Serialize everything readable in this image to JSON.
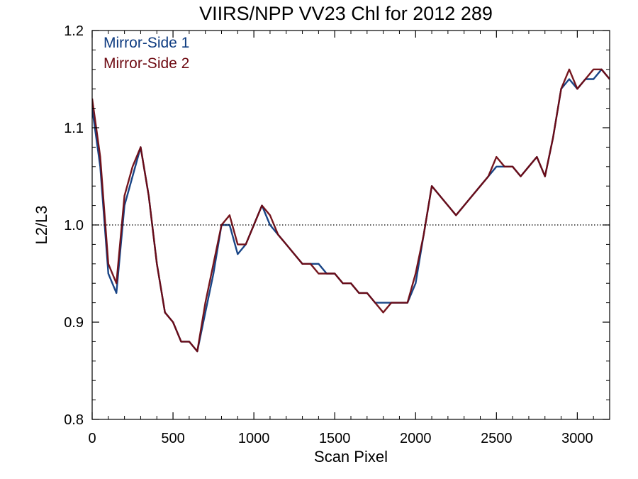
{
  "chart_data": {
    "type": "line",
    "title": "VIIRS/NPP VV23 Chl for 2012 289",
    "xlabel": "Scan Pixel",
    "ylabel": "L2/L3",
    "xlim": [
      0,
      3200
    ],
    "ylim": [
      0.8,
      1.2
    ],
    "x_ticks": [
      0,
      500,
      1000,
      1500,
      2000,
      2500,
      3000
    ],
    "x_tick_labels": [
      "0",
      "500",
      "1000",
      "1500",
      "2000",
      "2500",
      "3000"
    ],
    "y_ticks": [
      0.8,
      0.9,
      1.0,
      1.1,
      1.2
    ],
    "y_tick_labels": [
      "0.8",
      "0.9",
      "1.0",
      "1.1",
      "1.2"
    ],
    "reference_line": {
      "y": 1.0,
      "style": "dotted"
    },
    "grid": false,
    "legend_placement": "top-left",
    "series": [
      {
        "name": "Mirror-Side 1",
        "color": "#0d3b80",
        "x": [
          0,
          50,
          100,
          150,
          200,
          250,
          300,
          350,
          400,
          450,
          500,
          550,
          600,
          650,
          700,
          750,
          800,
          850,
          900,
          950,
          1000,
          1050,
          1100,
          1150,
          1200,
          1250,
          1300,
          1350,
          1400,
          1450,
          1500,
          1550,
          1600,
          1650,
          1700,
          1750,
          1800,
          1850,
          1900,
          1950,
          2000,
          2050,
          2100,
          2150,
          2200,
          2250,
          2300,
          2350,
          2400,
          2450,
          2500,
          2550,
          2600,
          2650,
          2700,
          2750,
          2800,
          2850,
          2900,
          2950,
          3000,
          3050,
          3100,
          3150,
          3200
        ],
        "y": [
          1.12,
          1.06,
          0.95,
          0.93,
          1.02,
          1.05,
          1.08,
          1.03,
          0.96,
          0.91,
          0.9,
          0.88,
          0.88,
          0.87,
          0.91,
          0.95,
          1.0,
          1.0,
          0.97,
          0.98,
          1.0,
          1.02,
          1.0,
          0.99,
          0.98,
          0.97,
          0.96,
          0.96,
          0.96,
          0.95,
          0.95,
          0.94,
          0.94,
          0.93,
          0.93,
          0.92,
          0.92,
          0.92,
          0.92,
          0.92,
          0.94,
          0.99,
          1.04,
          1.03,
          1.02,
          1.01,
          1.02,
          1.03,
          1.04,
          1.05,
          1.06,
          1.06,
          1.06,
          1.05,
          1.06,
          1.07,
          1.05,
          1.09,
          1.14,
          1.15,
          1.14,
          1.15,
          1.15,
          1.16,
          1.15
        ]
      },
      {
        "name": "Mirror-Side 2",
        "color": "#6e0a12",
        "x": [
          0,
          50,
          100,
          150,
          200,
          250,
          300,
          350,
          400,
          450,
          500,
          550,
          600,
          650,
          700,
          750,
          800,
          850,
          900,
          950,
          1000,
          1050,
          1100,
          1150,
          1200,
          1250,
          1300,
          1350,
          1400,
          1450,
          1500,
          1550,
          1600,
          1650,
          1700,
          1750,
          1800,
          1850,
          1900,
          1950,
          2000,
          2050,
          2100,
          2150,
          2200,
          2250,
          2300,
          2350,
          2400,
          2450,
          2500,
          2550,
          2600,
          2650,
          2700,
          2750,
          2800,
          2850,
          2900,
          2950,
          3000,
          3050,
          3100,
          3150,
          3200
        ],
        "y": [
          1.13,
          1.07,
          0.96,
          0.94,
          1.03,
          1.06,
          1.08,
          1.03,
          0.96,
          0.91,
          0.9,
          0.88,
          0.88,
          0.87,
          0.92,
          0.96,
          1.0,
          1.01,
          0.98,
          0.98,
          1.0,
          1.02,
          1.01,
          0.99,
          0.98,
          0.97,
          0.96,
          0.96,
          0.95,
          0.95,
          0.95,
          0.94,
          0.94,
          0.93,
          0.93,
          0.92,
          0.91,
          0.92,
          0.92,
          0.92,
          0.95,
          0.99,
          1.04,
          1.03,
          1.02,
          1.01,
          1.02,
          1.03,
          1.04,
          1.05,
          1.07,
          1.06,
          1.06,
          1.05,
          1.06,
          1.07,
          1.05,
          1.09,
          1.14,
          1.16,
          1.14,
          1.15,
          1.16,
          1.16,
          1.15
        ]
      }
    ]
  }
}
